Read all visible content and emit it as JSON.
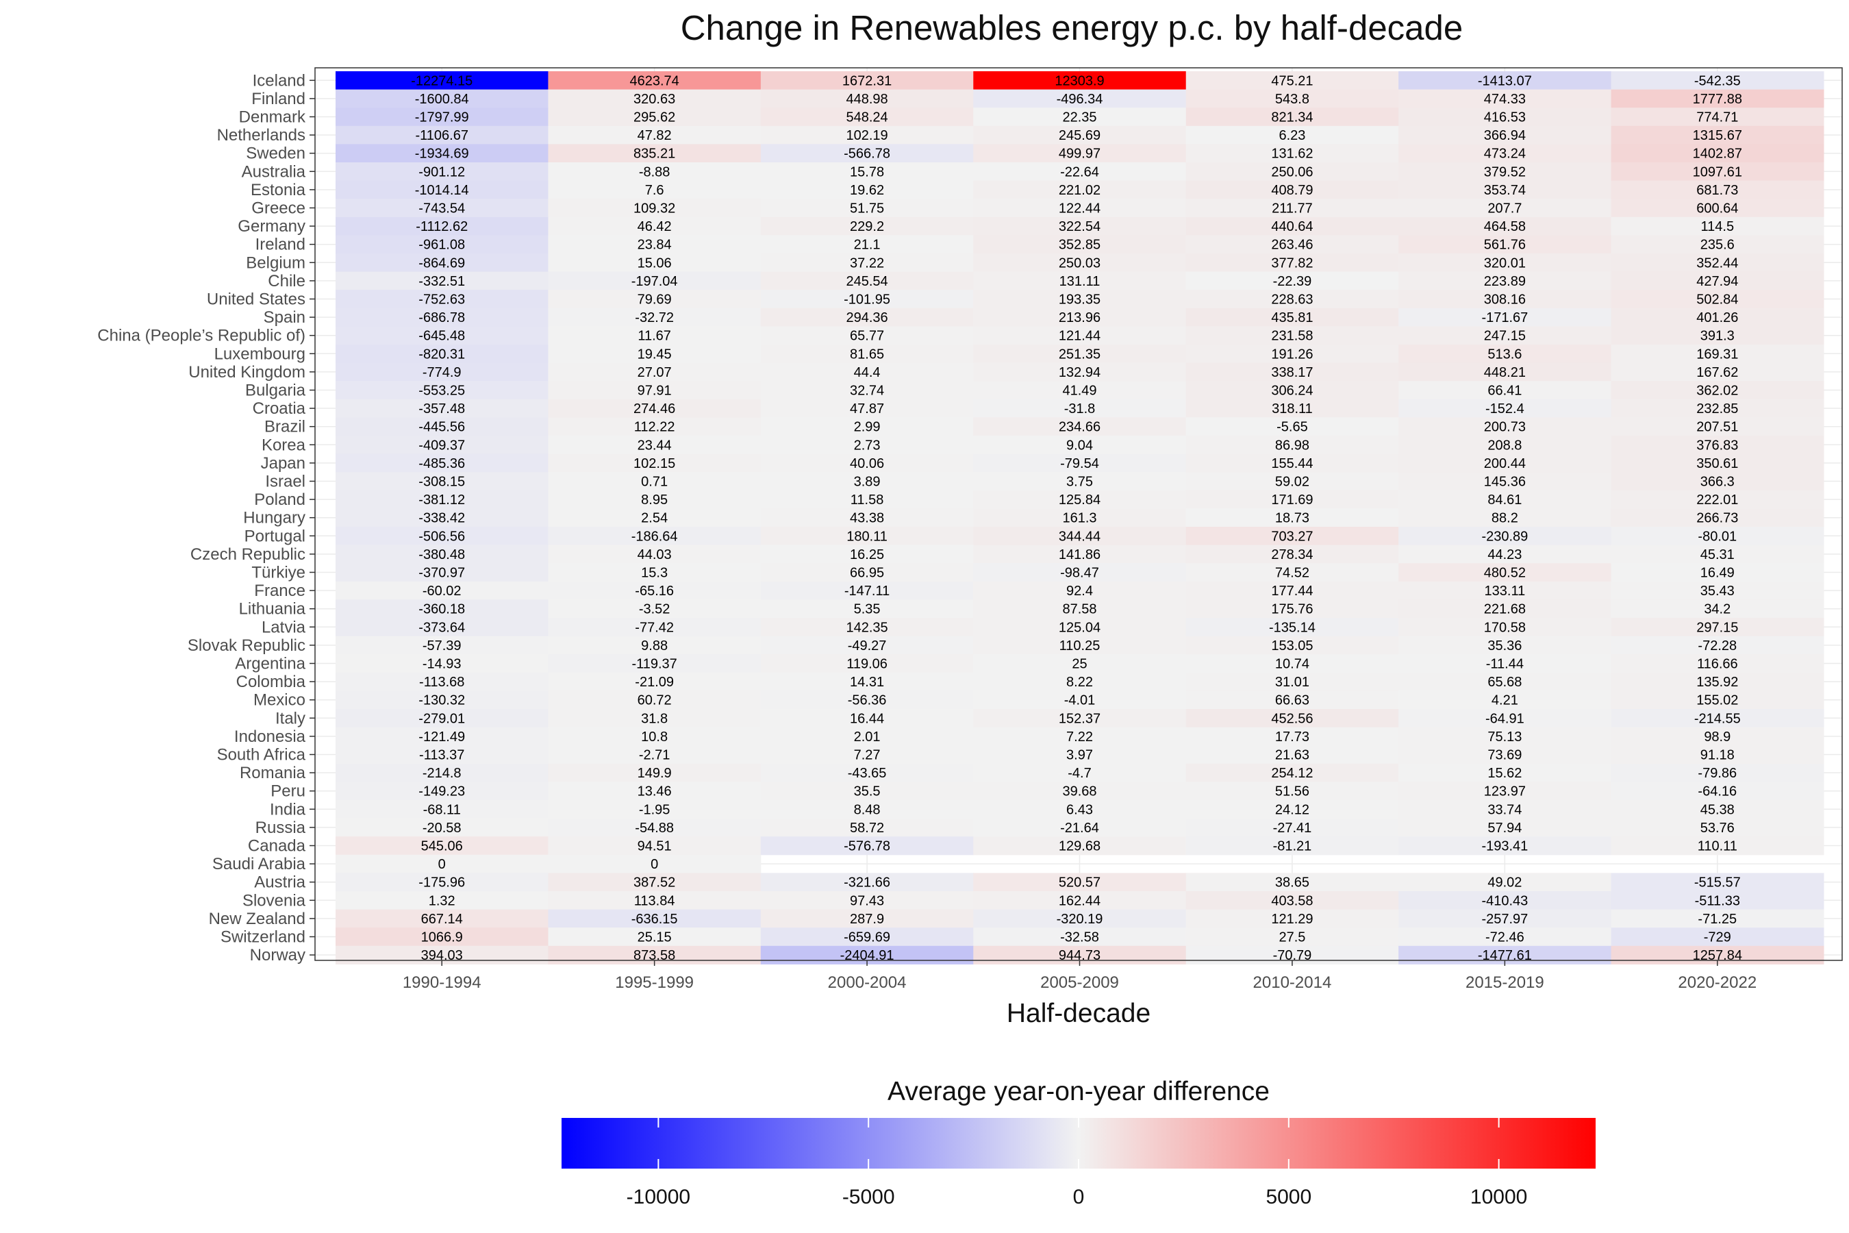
{
  "chart_data": {
    "type": "heatmap",
    "title": "Change in Renewables energy p.c. by half-decade",
    "xlabel": "Half-decade",
    "ylabel": "",
    "legend_title": "Average year-on-year difference",
    "legend_placement": "bottom",
    "legend_ticks": [
      -10000,
      -5000,
      0,
      5000,
      10000
    ],
    "color_range": [
      -12303.9,
      12303.9
    ],
    "colors": {
      "low": "#0000ff",
      "mid": "#f2f2f2",
      "high": "#ff0000",
      "na": "#ffffff"
    },
    "columns": [
      "1990-1994",
      "1995-1999",
      "2000-2004",
      "2005-2009",
      "2010-2014",
      "2015-2019",
      "2020-2022"
    ],
    "rows": [
      {
        "country": "Iceland",
        "values": [
          -12274.15,
          4623.74,
          1672.31,
          12303.9,
          475.21,
          -1413.07,
          -542.35
        ]
      },
      {
        "country": "Finland",
        "values": [
          -1600.84,
          320.63,
          448.98,
          -496.34,
          543.8,
          474.33,
          1777.88
        ]
      },
      {
        "country": "Denmark",
        "values": [
          -1797.99,
          295.62,
          548.24,
          22.35,
          821.34,
          416.53,
          774.71
        ]
      },
      {
        "country": "Netherlands",
        "values": [
          -1106.67,
          47.82,
          102.19,
          245.69,
          6.23,
          366.94,
          1315.67
        ]
      },
      {
        "country": "Sweden",
        "values": [
          -1934.69,
          835.21,
          -566.78,
          499.97,
          131.62,
          473.24,
          1402.87
        ]
      },
      {
        "country": "Australia",
        "values": [
          -901.12,
          -8.88,
          15.78,
          -22.64,
          250.06,
          379.52,
          1097.61
        ]
      },
      {
        "country": "Estonia",
        "values": [
          -1014.14,
          7.6,
          19.62,
          221.02,
          408.79,
          353.74,
          681.73
        ]
      },
      {
        "country": "Greece",
        "values": [
          -743.54,
          109.32,
          51.75,
          122.44,
          211.77,
          207.7,
          600.64
        ]
      },
      {
        "country": "Germany",
        "values": [
          -1112.62,
          46.42,
          229.2,
          322.54,
          440.64,
          464.58,
          114.5
        ]
      },
      {
        "country": "Ireland",
        "values": [
          -961.08,
          23.84,
          21.1,
          352.85,
          263.46,
          561.76,
          235.6
        ]
      },
      {
        "country": "Belgium",
        "values": [
          -864.69,
          15.06,
          37.22,
          250.03,
          377.82,
          320.01,
          352.44
        ]
      },
      {
        "country": "Chile",
        "values": [
          -332.51,
          -197.04,
          245.54,
          131.11,
          -22.39,
          223.89,
          427.94
        ]
      },
      {
        "country": "United States",
        "values": [
          -752.63,
          79.69,
          -101.95,
          193.35,
          228.63,
          308.16,
          502.84
        ]
      },
      {
        "country": "Spain",
        "values": [
          -686.78,
          -32.72,
          294.36,
          213.96,
          435.81,
          -171.67,
          401.26
        ]
      },
      {
        "country": "China (People’s Republic of)",
        "values": [
          -645.48,
          11.67,
          65.77,
          121.44,
          231.58,
          247.15,
          391.3
        ]
      },
      {
        "country": "Luxembourg",
        "values": [
          -820.31,
          19.45,
          81.65,
          251.35,
          191.26,
          513.6,
          169.31
        ]
      },
      {
        "country": "United Kingdom",
        "values": [
          -774.9,
          27.07,
          44.4,
          132.94,
          338.17,
          448.21,
          167.62
        ]
      },
      {
        "country": "Bulgaria",
        "values": [
          -553.25,
          97.91,
          32.74,
          41.49,
          306.24,
          66.41,
          362.02
        ]
      },
      {
        "country": "Croatia",
        "values": [
          -357.48,
          274.46,
          47.87,
          -31.8,
          318.11,
          -152.4,
          232.85
        ]
      },
      {
        "country": "Brazil",
        "values": [
          -445.56,
          112.22,
          2.99,
          234.66,
          -5.65,
          200.73,
          207.51
        ]
      },
      {
        "country": "Korea",
        "values": [
          -409.37,
          23.44,
          2.73,
          9.04,
          86.98,
          208.8,
          376.83
        ]
      },
      {
        "country": "Japan",
        "values": [
          -485.36,
          102.15,
          40.06,
          -79.54,
          155.44,
          200.44,
          350.61
        ]
      },
      {
        "country": "Israel",
        "values": [
          -308.15,
          0.71,
          3.89,
          3.75,
          59.02,
          145.36,
          366.3
        ]
      },
      {
        "country": "Poland",
        "values": [
          -381.12,
          8.95,
          11.58,
          125.84,
          171.69,
          84.61,
          222.01
        ]
      },
      {
        "country": "Hungary",
        "values": [
          -338.42,
          2.54,
          43.38,
          161.3,
          18.73,
          88.2,
          266.73
        ]
      },
      {
        "country": "Portugal",
        "values": [
          -506.56,
          -186.64,
          180.11,
          344.44,
          703.27,
          -230.89,
          -80.01
        ]
      },
      {
        "country": "Czech Republic",
        "values": [
          -380.48,
          44.03,
          16.25,
          141.86,
          278.34,
          44.23,
          45.31
        ]
      },
      {
        "country": "Türkiye",
        "values": [
          -370.97,
          15.3,
          66.95,
          -98.47,
          74.52,
          480.52,
          16.49
        ]
      },
      {
        "country": "France",
        "values": [
          -60.02,
          -65.16,
          -147.11,
          92.4,
          177.44,
          133.11,
          35.43
        ]
      },
      {
        "country": "Lithuania",
        "values": [
          -360.18,
          -3.52,
          5.35,
          87.58,
          175.76,
          221.68,
          34.2
        ]
      },
      {
        "country": "Latvia",
        "values": [
          -373.64,
          -77.42,
          142.35,
          125.04,
          -135.14,
          170.58,
          297.15
        ]
      },
      {
        "country": "Slovak Republic",
        "values": [
          -57.39,
          9.88,
          -49.27,
          110.25,
          153.05,
          35.36,
          -72.28
        ]
      },
      {
        "country": "Argentina",
        "values": [
          -14.93,
          -119.37,
          119.06,
          25,
          10.74,
          -11.44,
          116.66
        ]
      },
      {
        "country": "Colombia",
        "values": [
          -113.68,
          -21.09,
          14.31,
          8.22,
          31.01,
          65.68,
          135.92
        ]
      },
      {
        "country": "Mexico",
        "values": [
          -130.32,
          60.72,
          -56.36,
          -4.01,
          66.63,
          4.21,
          155.02
        ]
      },
      {
        "country": "Italy",
        "values": [
          -279.01,
          31.8,
          16.44,
          152.37,
          452.56,
          -64.91,
          -214.55
        ]
      },
      {
        "country": "Indonesia",
        "values": [
          -121.49,
          10.8,
          2.01,
          7.22,
          17.73,
          75.13,
          98.9
        ]
      },
      {
        "country": "South Africa",
        "values": [
          -113.37,
          -2.71,
          7.27,
          3.97,
          21.63,
          73.69,
          91.18
        ]
      },
      {
        "country": "Romania",
        "values": [
          -214.8,
          149.9,
          -43.65,
          -4.7,
          254.12,
          15.62,
          -79.86
        ]
      },
      {
        "country": "Peru",
        "values": [
          -149.23,
          13.46,
          35.5,
          39.68,
          51.56,
          123.97,
          -64.16
        ]
      },
      {
        "country": "India",
        "values": [
          -68.11,
          -1.95,
          8.48,
          6.43,
          24.12,
          33.74,
          45.38
        ]
      },
      {
        "country": "Russia",
        "values": [
          -20.58,
          -54.88,
          58.72,
          -21.64,
          -27.41,
          57.94,
          53.76
        ]
      },
      {
        "country": "Canada",
        "values": [
          545.06,
          94.51,
          -576.78,
          129.68,
          -81.21,
          -193.41,
          110.11
        ]
      },
      {
        "country": "Saudi Arabia",
        "values": [
          0,
          0,
          null,
          null,
          null,
          null,
          null
        ]
      },
      {
        "country": "Austria",
        "values": [
          -175.96,
          387.52,
          -321.66,
          520.57,
          38.65,
          49.02,
          -515.57
        ]
      },
      {
        "country": "Slovenia",
        "values": [
          1.32,
          113.84,
          97.43,
          162.44,
          403.58,
          -410.43,
          -511.33
        ]
      },
      {
        "country": "New Zealand",
        "values": [
          667.14,
          -636.15,
          287.9,
          -320.19,
          121.29,
          -257.97,
          -71.25
        ]
      },
      {
        "country": "Switzerland",
        "values": [
          1066.9,
          25.15,
          -659.69,
          -32.58,
          27.5,
          -72.46,
          -729
        ]
      },
      {
        "country": "Norway",
        "values": [
          394.03,
          873.58,
          -2404.91,
          944.73,
          -70.79,
          -1477.61,
          1257.84
        ]
      }
    ]
  }
}
